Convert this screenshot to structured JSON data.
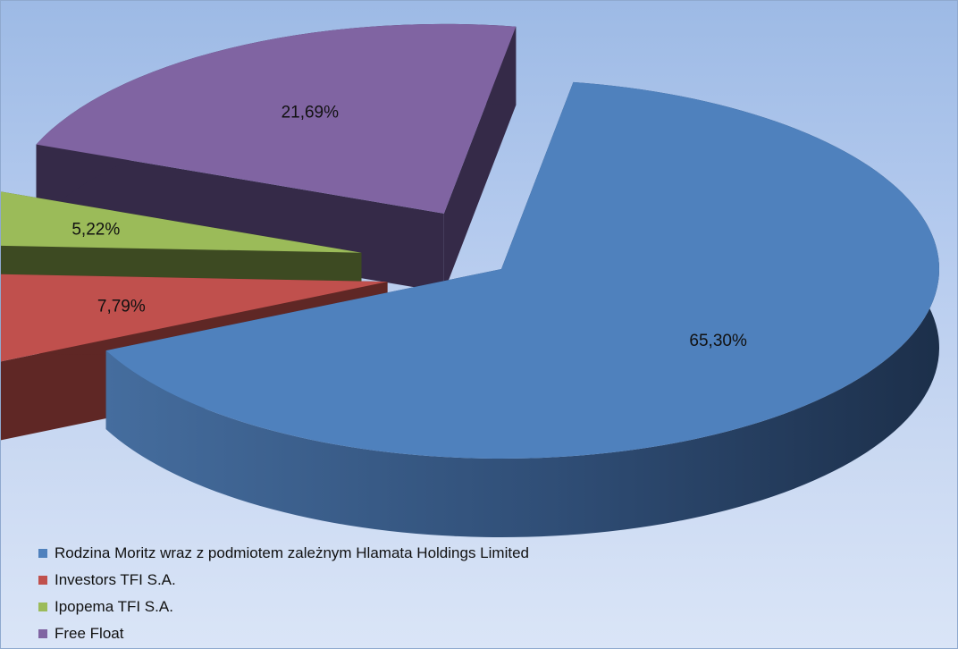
{
  "chart_data": {
    "type": "pie",
    "title": "",
    "legend_position": "bottom-left",
    "three_d": true,
    "exploded": true,
    "slices": [
      {
        "label": "Rodzina Moritz wraz z podmiotem zależnym Hlamata Holdings Limited",
        "value": 65.3,
        "display": "65,30%",
        "color": "#4f81bd"
      },
      {
        "label": "Investors TFI S.A.",
        "value": 7.79,
        "display": "7,79%",
        "color": "#c0504d"
      },
      {
        "label": "Ipopema TFI S.A.",
        "value": 5.22,
        "display": "5,22%",
        "color": "#9bbb59"
      },
      {
        "label": "Free Float",
        "value": 21.69,
        "display": "21,69%",
        "color": "#8064a2"
      }
    ]
  }
}
